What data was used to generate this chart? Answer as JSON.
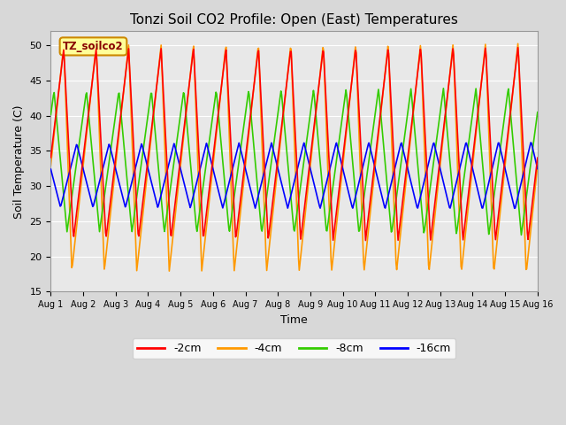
{
  "title": "Tonzi Soil CO2 Profile: Open (East) Temperatures",
  "xlabel": "Time",
  "ylabel": "Soil Temperature (C)",
  "ylim": [
    15,
    52
  ],
  "yticks": [
    15,
    20,
    25,
    30,
    35,
    40,
    45,
    50
  ],
  "legend_labels": [
    "-2cm",
    "-4cm",
    "-8cm",
    "-16cm"
  ],
  "legend_colors": [
    "#ff0000",
    "#ff9900",
    "#33cc00",
    "#0000ff"
  ],
  "background_color": "#e8e8e8",
  "days": 15,
  "n_points_per_day": 48,
  "depth_2cm": {
    "mean": 36.0,
    "amp": 13.5,
    "phase_shift": 0.3,
    "skew": 0.7
  },
  "depth_4cm": {
    "mean": 34.0,
    "amp": 16.0,
    "phase_shift": 0.35,
    "skew": 0.75
  },
  "depth_8cm": {
    "mean": 33.5,
    "amp": 10.0,
    "phase_shift": 0.5,
    "skew": 0.6
  },
  "depth_16cm": {
    "mean": 31.5,
    "amp": 4.5,
    "phase_shift": 0.7,
    "skew": 0.5
  }
}
